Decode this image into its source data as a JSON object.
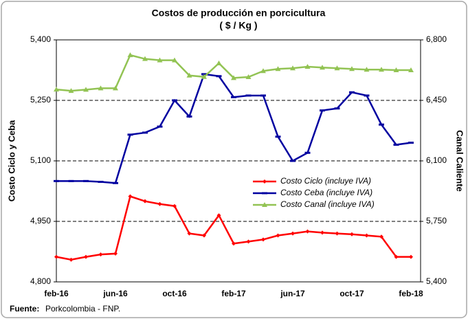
{
  "chart_data": {
    "type": "line",
    "title": "Costos de producción en porcicultura",
    "subtitle": "( $ / Kg )",
    "ylabel": "Costo Ciclo  y Ceba",
    "y2label": "Canal Caliente",
    "source_label": "Fuente:",
    "source": "Porkcolombia - FNP.",
    "categories": [
      "feb-16",
      null,
      null,
      null,
      "jun-16",
      null,
      null,
      null,
      "oct-16",
      null,
      null,
      null,
      "feb-17",
      null,
      null,
      null,
      "jun-17",
      null,
      null,
      null,
      "oct-17",
      null,
      null,
      null,
      "feb-18"
    ],
    "series": [
      {
        "name": "Costo Ciclo (incluye IVA)",
        "color": "#ff0000",
        "marker": "diamond",
        "values": [
          4862,
          4855,
          4862,
          4868,
          4870,
          5012,
          5000,
          4993,
          4988,
          4920,
          4915,
          4965,
          4895,
          4900,
          4905,
          4915,
          4920,
          4925,
          4922,
          4920,
          4918,
          4915,
          4912,
          4862,
          4862
        ]
      },
      {
        "name": "Costo Ceba (incluye IVA)",
        "color": "#0000a0",
        "marker": "dash",
        "values": [
          5050,
          5050,
          5050,
          5048,
          5045,
          5165,
          5170,
          5185,
          5250,
          5210,
          5315,
          5310,
          5258,
          5262,
          5262,
          5160,
          5100,
          5120,
          5225,
          5230,
          5270,
          5262,
          5190,
          5140,
          5145
        ]
      },
      {
        "name": "Costo Canal (incluye IVA)",
        "color": "#92c353",
        "marker": "triangle",
        "axis": "y2",
        "values": [
          6513,
          6505,
          6512,
          6520,
          6520,
          6712,
          6690,
          6682,
          6682,
          6594,
          6586,
          6665,
          6580,
          6585,
          6620,
          6632,
          6636,
          6645,
          6640,
          6636,
          6632,
          6628,
          6628,
          6625,
          6625
        ]
      }
    ],
    "ylim": [
      4800,
      5400
    ],
    "yticks": [
      {
        "value": 4800,
        "label": "4,800"
      },
      {
        "value": 4950,
        "label": "4,950"
      },
      {
        "value": 5100,
        "label": "5,100"
      },
      {
        "value": 5250,
        "label": "5,250"
      },
      {
        "value": 5400,
        "label": "5,400"
      }
    ],
    "y2lim": [
      5400,
      6800
    ],
    "y2ticks": [
      {
        "value": 5400,
        "label": "5,400"
      },
      {
        "value": 5750,
        "label": "5,750"
      },
      {
        "value": 6100,
        "label": "6,100"
      },
      {
        "value": 6450,
        "label": "6,450"
      },
      {
        "value": 6800,
        "label": "6,800"
      }
    ],
    "grid": true,
    "legend": "right"
  }
}
